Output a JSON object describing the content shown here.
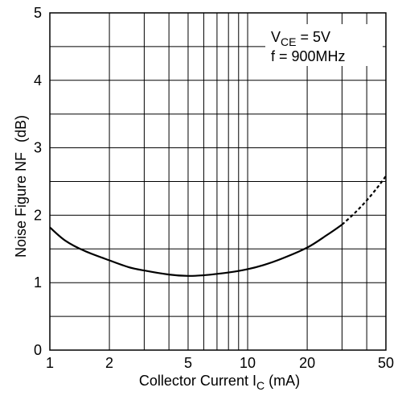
{
  "chart_data": {
    "type": "line",
    "x_scale": "log",
    "xlim": [
      1,
      50
    ],
    "ylim": [
      0,
      5
    ],
    "x_ticks": [
      {
        "value": 1,
        "label": "1"
      },
      {
        "value": 2,
        "label": "2"
      },
      {
        "value": 5,
        "label": "5"
      },
      {
        "value": 10,
        "label": "10"
      },
      {
        "value": 20,
        "label": "20"
      },
      {
        "value": 50,
        "label": "50"
      }
    ],
    "x_minor_gridlines": [
      3,
      4,
      6,
      7,
      8,
      9,
      30,
      40
    ],
    "y_ticks": [
      {
        "value": 0,
        "label": "0"
      },
      {
        "value": 1,
        "label": "1"
      },
      {
        "value": 2,
        "label": "2"
      },
      {
        "value": 3,
        "label": "3"
      },
      {
        "value": 4,
        "label": "4"
      },
      {
        "value": 5,
        "label": "5"
      }
    ],
    "y_minor_gridlines": [
      0.5,
      1.5,
      2.5,
      3.5,
      4.5
    ],
    "xlabel": {
      "main": "Collector Current  I",
      "sub": "C",
      "unit": " (mA)"
    },
    "ylabel": {
      "main": "Noise Figure  NF",
      "unit": "(dB)"
    },
    "grid": true,
    "annotations": {
      "vce": {
        "main": "V",
        "sub": "CE",
        "rest": " = 5V"
      },
      "freq": "f = 900MHz"
    },
    "series": [
      {
        "style": "solid",
        "x": [
          1,
          1.2,
          1.5,
          2,
          2.5,
          3,
          4,
          5,
          6,
          7,
          8,
          10,
          12,
          15,
          20,
          25,
          30
        ],
        "y": [
          1.82,
          1.62,
          1.47,
          1.33,
          1.23,
          1.18,
          1.12,
          1.1,
          1.11,
          1.13,
          1.15,
          1.2,
          1.26,
          1.36,
          1.52,
          1.7,
          1.86
        ]
      },
      {
        "style": "dashed",
        "x": [
          30,
          35,
          40,
          45,
          50
        ],
        "y": [
          1.86,
          2.04,
          2.22,
          2.4,
          2.58
        ]
      }
    ]
  }
}
